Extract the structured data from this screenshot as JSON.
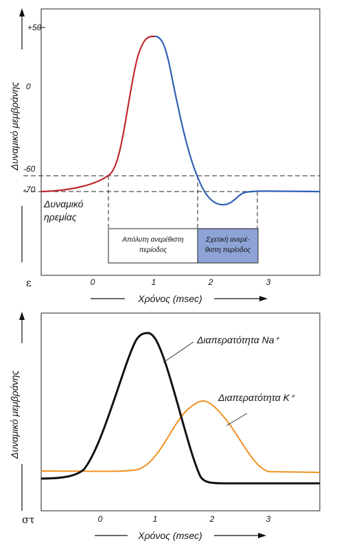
{
  "top": {
    "panel_label": "ε",
    "y_axis_label": "Δυναμικό μεμβράνης",
    "x_axis_label": "Χρόνος (msec)",
    "y_ticks": [
      "+50",
      "0",
      "-60",
      "-70"
    ],
    "x_ticks": [
      "0",
      "1",
      "2",
      "3"
    ],
    "resting_label_line1": "Δυναμικό",
    "resting_label_line2": "ηρεμίας",
    "absolute_refractory_line1": "Απόλυτη ανερέθιστη",
    "absolute_refractory_line2": "περίοδος",
    "relative_refractory_line1": "Σχετική ανερέ-",
    "relative_refractory_line2": "θιστη περίοδος",
    "colors": {
      "depolarization": "#c0272d",
      "repolarization": "#2f5fb3",
      "relative_box": "#8ea3d6"
    }
  },
  "bottom": {
    "panel_label": "στ",
    "y_axis_label": "Δυναμικό μεμβράνης",
    "x_axis_label": "Χρόνος (msec)",
    "x_ticks": [
      "0",
      "1",
      "2",
      "3"
    ],
    "na_label": "Διαπερατότητα Na⁺",
    "k_label": "Διαπερατότητα K⁺",
    "colors": {
      "na": "#111111",
      "k": "#f0901e"
    }
  }
}
